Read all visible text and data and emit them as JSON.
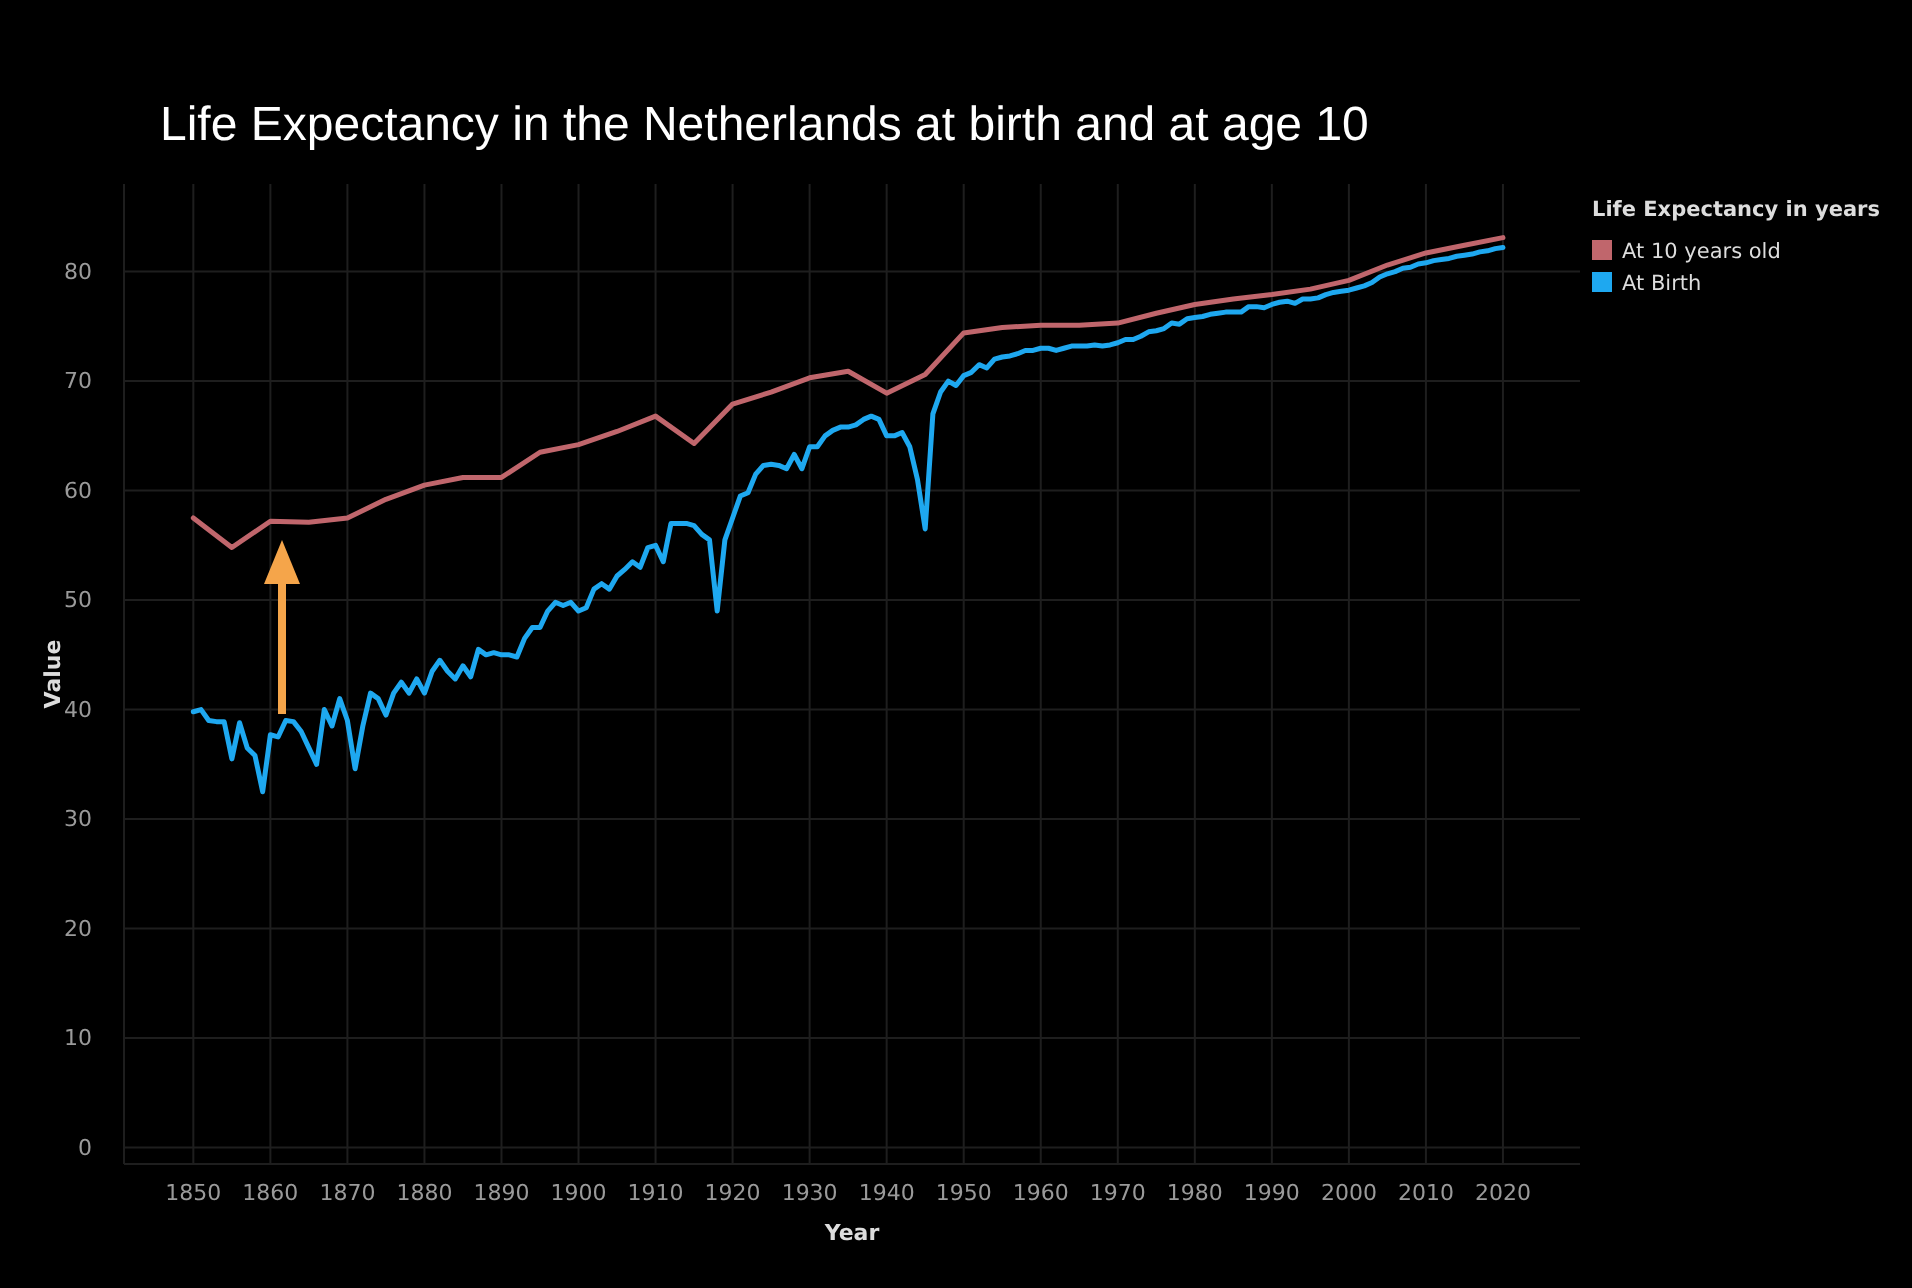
{
  "chart_data": {
    "type": "line",
    "title": "Life Expectancy in the Netherlands at birth and at age 10",
    "xlabel": "Year",
    "ylabel": "Value",
    "legend_title": "Life Expectancy in years",
    "legend": "top right",
    "grid": true,
    "xlim": [
      1841,
      2030
    ],
    "xticks": [
      1850,
      1860,
      1870,
      1880,
      1890,
      1900,
      1910,
      1920,
      1930,
      1940,
      1950,
      1960,
      1970,
      1980,
      1990,
      2000,
      2010,
      2020
    ],
    "ylim": [
      -1.5,
      88
    ],
    "yticks": [
      0,
      10,
      20,
      30,
      40,
      50,
      60,
      70,
      80
    ],
    "series": [
      {
        "name": "At 10 years old",
        "color": "#c0666c",
        "x": [
          1850,
          1855,
          1860,
          1865,
          1870,
          1875,
          1880,
          1885,
          1890,
          1895,
          1900,
          1905,
          1910,
          1915,
          1920,
          1925,
          1930,
          1935,
          1940,
          1945,
          1950,
          1955,
          1960,
          1965,
          1970,
          1975,
          1980,
          1985,
          1990,
          1995,
          2000,
          2005,
          2010,
          2015,
          2020
        ],
        "values": [
          57.5,
          54.8,
          57.2,
          57.1,
          57.5,
          59.2,
          60.5,
          61.2,
          61.2,
          63.5,
          64.2,
          65.4,
          66.8,
          64.3,
          67.9,
          69.0,
          70.3,
          70.9,
          68.9,
          70.6,
          74.4,
          74.9,
          75.1,
          75.1,
          75.3,
          76.2,
          77.0,
          77.5,
          77.9,
          78.4,
          79.2,
          80.6,
          81.7,
          82.4,
          83.1
        ]
      },
      {
        "name": "At Birth",
        "color": "#1ea8f0",
        "x": [
          1850,
          1851,
          1852,
          1853,
          1854,
          1855,
          1856,
          1857,
          1858,
          1859,
          1860,
          1861,
          1862,
          1863,
          1864,
          1865,
          1866,
          1867,
          1868,
          1869,
          1870,
          1871,
          1872,
          1873,
          1874,
          1875,
          1876,
          1877,
          1878,
          1879,
          1880,
          1881,
          1882,
          1883,
          1884,
          1885,
          1886,
          1887,
          1888,
          1889,
          1890,
          1891,
          1892,
          1893,
          1894,
          1895,
          1896,
          1897,
          1898,
          1899,
          1900,
          1901,
          1902,
          1903,
          1904,
          1905,
          1906,
          1907,
          1908,
          1909,
          1910,
          1911,
          1912,
          1913,
          1914,
          1915,
          1916,
          1917,
          1918,
          1919,
          1920,
          1921,
          1922,
          1923,
          1924,
          1925,
          1926,
          1927,
          1928,
          1929,
          1930,
          1931,
          1932,
          1933,
          1934,
          1935,
          1936,
          1937,
          1938,
          1939,
          1940,
          1941,
          1942,
          1943,
          1944,
          1945,
          1946,
          1947,
          1948,
          1949,
          1950,
          1951,
          1952,
          1953,
          1954,
          1955,
          1956,
          1957,
          1958,
          1959,
          1960,
          1961,
          1962,
          1963,
          1964,
          1965,
          1966,
          1967,
          1968,
          1969,
          1970,
          1971,
          1972,
          1973,
          1974,
          1975,
          1976,
          1977,
          1978,
          1979,
          1980,
          1981,
          1982,
          1983,
          1984,
          1985,
          1986,
          1987,
          1988,
          1989,
          1990,
          1991,
          1992,
          1993,
          1994,
          1995,
          1996,
          1997,
          1998,
          1999,
          2000,
          2001,
          2002,
          2003,
          2004,
          2005,
          2006,
          2007,
          2008,
          2009,
          2010,
          2011,
          2012,
          2013,
          2014,
          2015,
          2016,
          2017,
          2018,
          2019,
          2020
        ],
        "values": [
          39.8,
          40.0,
          39.0,
          38.9,
          38.9,
          35.5,
          38.8,
          36.5,
          35.8,
          32.5,
          37.7,
          37.5,
          39.0,
          38.9,
          38.0,
          36.5,
          35.0,
          40.0,
          38.5,
          41.0,
          39.0,
          34.6,
          38.5,
          41.5,
          41.0,
          39.5,
          41.5,
          42.5,
          41.5,
          42.8,
          41.5,
          43.5,
          44.5,
          43.5,
          42.8,
          44.0,
          43.0,
          45.5,
          45.0,
          45.2,
          45.0,
          45.0,
          44.8,
          46.5,
          47.5,
          47.5,
          49.0,
          49.8,
          49.5,
          49.8,
          49.0,
          49.3,
          51.0,
          51.5,
          51.0,
          52.2,
          52.8,
          53.5,
          53.0,
          54.8,
          55.0,
          53.5,
          57.0,
          57.0,
          57.0,
          56.8,
          56.0,
          55.5,
          49.0,
          55.5,
          57.5,
          59.5,
          59.8,
          61.5,
          62.3,
          62.4,
          62.3,
          62.0,
          63.3,
          62.0,
          64.0,
          64.0,
          65.0,
          65.5,
          65.8,
          65.8,
          66.0,
          66.5,
          66.8,
          66.5,
          65.0,
          65.0,
          65.3,
          64.0,
          61.0,
          56.5,
          67.0,
          69.0,
          70.0,
          69.6,
          70.5,
          70.8,
          71.5,
          71.2,
          72.0,
          72.2,
          72.3,
          72.5,
          72.8,
          72.8,
          73.0,
          73.0,
          72.8,
          73.0,
          73.2,
          73.2,
          73.2,
          73.3,
          73.2,
          73.3,
          73.5,
          73.8,
          73.8,
          74.1,
          74.5,
          74.6,
          74.8,
          75.3,
          75.2,
          75.7,
          75.8,
          75.9,
          76.1,
          76.2,
          76.3,
          76.3,
          76.3,
          76.8,
          76.8,
          76.7,
          77.0,
          77.2,
          77.3,
          77.1,
          77.5,
          77.5,
          77.6,
          77.9,
          78.1,
          78.2,
          78.3,
          78.5,
          78.7,
          79.0,
          79.5,
          79.8,
          80.0,
          80.3,
          80.4,
          80.7,
          80.8,
          81.0,
          81.1,
          81.2,
          81.4,
          81.5,
          81.6,
          81.8,
          81.9,
          82.1,
          82.2
        ]
      }
    ]
  }
}
